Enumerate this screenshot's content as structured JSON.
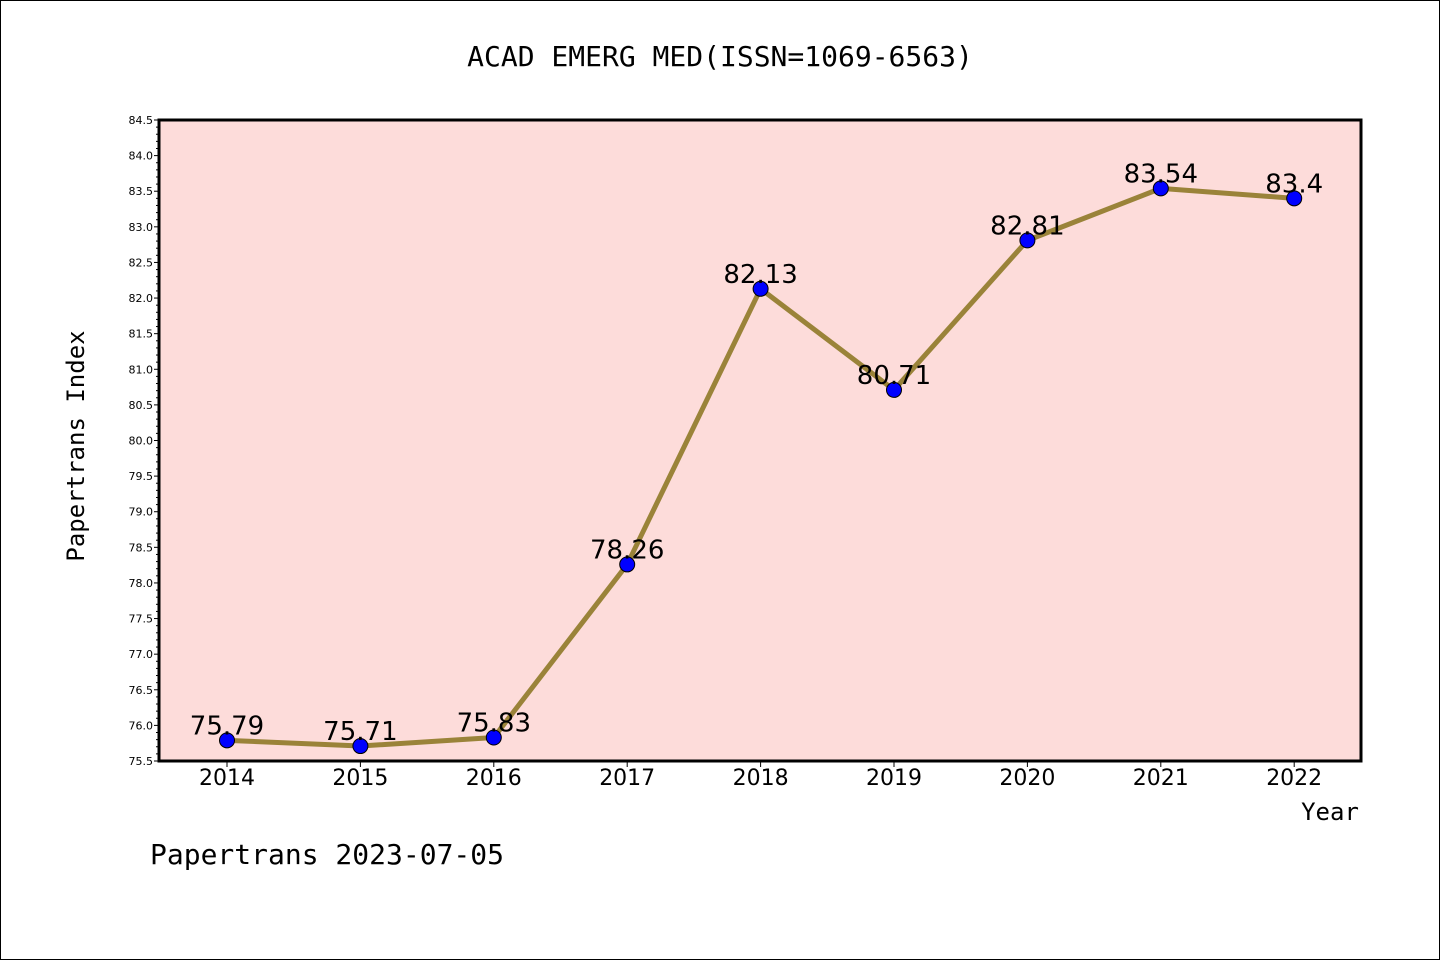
{
  "chart_data": {
    "type": "line",
    "title": "ACAD EMERG MED(ISSN=1069-6563)",
    "xlabel": "Year",
    "ylabel": "Papertrans Index",
    "categories": [
      "2014",
      "2015",
      "2016",
      "2017",
      "2018",
      "2019",
      "2020",
      "2021",
      "2022"
    ],
    "series": [
      {
        "values": [
          75.79,
          75.71,
          75.83,
          78.26,
          82.13,
          80.71,
          82.81,
          83.54,
          83.4
        ]
      }
    ],
    "data_labels": [
      "75.79",
      "75.71",
      "75.83",
      "78.26",
      "82.13",
      "80.71",
      "82.81",
      "83.54",
      "83.4"
    ],
    "ylim": [
      75.5,
      84.5
    ],
    "y_ticks": [
      "75.5",
      "76.0",
      "76.5",
      "77.0",
      "77.5",
      "78.0",
      "78.5",
      "79.0",
      "79.5",
      "80.0",
      "80.5",
      "81.0",
      "81.5",
      "82.0",
      "82.5",
      "83.0",
      "83.5",
      "84.0",
      "84.5"
    ],
    "grid": false,
    "colors": {
      "plot_background": "#fddcda",
      "line": "#9a8339",
      "marker": "#0000ff"
    }
  },
  "footer": "Papertrans 2023-07-05"
}
